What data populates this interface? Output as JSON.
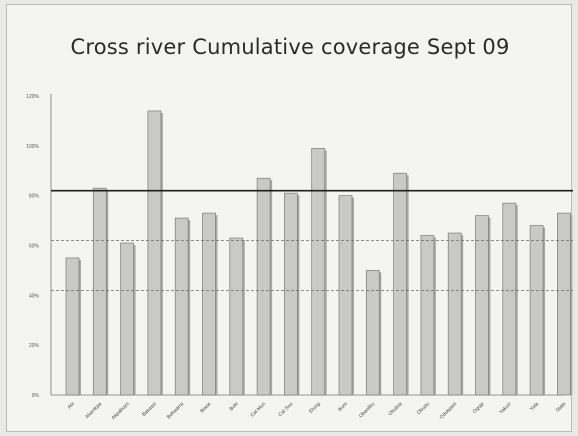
{
  "colors": {
    "bar_fill": "#c9c9c6",
    "bar_stroke": "#7a7a77",
    "target_line": "#1e1e1e",
    "dashed_line": "#6b6b6b",
    "axis": "#777777"
  },
  "chart_data": {
    "type": "bar",
    "title": "Cross river Cumulative coverage Sept 09",
    "xlabel": "",
    "ylabel": "",
    "ylim": [
      0,
      120
    ],
    "yticks": [
      0,
      20,
      40,
      60,
      80,
      100,
      120
    ],
    "ytick_labels": [
      "0%",
      "20%",
      "40%",
      "60%",
      "80%",
      "100%",
      "120%"
    ],
    "grid": false,
    "legend": "none",
    "categories": [
      "Abi",
      "Akamkpa",
      "Akpabuyo",
      "Bakassi",
      "Bekwarra",
      "Biase",
      "Boki",
      "Cal Mun",
      "Cal Sou",
      "Etung",
      "Ikom",
      "Obanliku",
      "Obubra",
      "Obudu",
      "Odukpani",
      "Ogoja",
      "Yakurr",
      "Yala",
      "State"
    ],
    "values": [
      55,
      83,
      61,
      114,
      71,
      73,
      63,
      87,
      81,
      99,
      80,
      50,
      89,
      64,
      65,
      72,
      77,
      68,
      73
    ],
    "reference_lines": [
      {
        "value": 82,
        "style": "solid"
      },
      {
        "value": 62,
        "style": "dashed"
      },
      {
        "value": 42,
        "style": "dashed"
      }
    ]
  }
}
